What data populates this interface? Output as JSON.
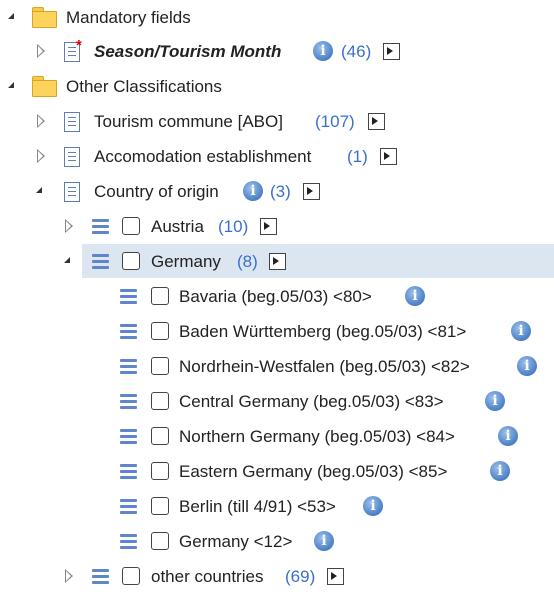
{
  "tree": {
    "mandatory": {
      "label": "Mandatory fields"
    },
    "season": {
      "label": "Season/Tourism Month",
      "count": "(46)"
    },
    "other_classifications": {
      "label": "Other Classifications"
    },
    "tourism_commune": {
      "label": "Tourism commune [ABO]",
      "count": "(107)"
    },
    "accommodation": {
      "label": "Accomodation establishment",
      "count": "(1)"
    },
    "country_of_origin": {
      "label": "Country of origin",
      "count": "(3)"
    },
    "austria": {
      "label": "Austria",
      "count": "(10)"
    },
    "germany": {
      "label": "Germany",
      "count": "(8)"
    },
    "germany_children": [
      {
        "label": "Bavaria (beg.05/03) <80>"
      },
      {
        "label": "Baden Württemberg (beg.05/03) <81>"
      },
      {
        "label": "Nordrhein-Westfalen (beg.05/03) <82>"
      },
      {
        "label": "Central Germany (beg.05/03) <83>"
      },
      {
        "label": "Northern Germany (beg.05/03) <84>"
      },
      {
        "label": "Eastern Germany (beg.05/03) <85>"
      },
      {
        "label": "Berlin (till 4/91) <53>"
      },
      {
        "label": "Germany <12>"
      }
    ],
    "other_countries": {
      "label": "other countries",
      "count": "(69)"
    }
  },
  "icons": {
    "info": "i",
    "folder": "folder-icon",
    "document": "document-icon",
    "list": "list-icon",
    "go": "go-arrow-icon"
  },
  "colors": {
    "count": "#3a6fcf",
    "selected_row": "#dce6f1",
    "required_star": "#e00000"
  }
}
